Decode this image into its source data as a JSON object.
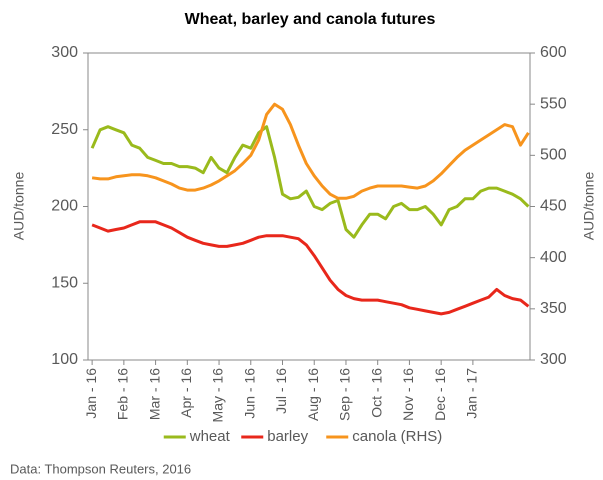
{
  "chart_data": {
    "type": "line",
    "title": "Wheat, barley and canola futures",
    "y_label": "AUD/tonne",
    "y2_label": "AUD/tonne",
    "source": "Data: Thompson Reuters, 2016",
    "x": [
      0,
      0.25,
      0.5,
      0.75,
      1,
      1.25,
      1.5,
      1.75,
      2,
      2.25,
      2.5,
      2.75,
      3,
      3.25,
      3.5,
      3.75,
      4,
      4.25,
      4.5,
      4.75,
      5,
      5.25,
      5.5,
      5.75,
      6,
      6.25,
      6.5,
      6.75,
      7,
      7.25,
      7.5,
      7.75,
      8,
      8.25,
      8.5,
      8.75,
      9,
      9.25,
      9.5,
      9.75,
      10,
      10.25,
      10.5,
      10.75,
      11,
      11.25,
      11.5,
      11.75,
      12,
      12.25,
      12.5,
      12.75,
      13,
      13.25,
      13.5,
      13.75
    ],
    "series": [
      {
        "name": "wheat",
        "color": "#9aba1c",
        "values": [
          238,
          250,
          252,
          250,
          248,
          240,
          238,
          232,
          230,
          228,
          228,
          226,
          226,
          225,
          222,
          232,
          225,
          222,
          232,
          240,
          238,
          248,
          252,
          232,
          208,
          205,
          206,
          210,
          200,
          198,
          202,
          204,
          185,
          180,
          188,
          195,
          195,
          192,
          200,
          202,
          198,
          198,
          200,
          195,
          188,
          198,
          200,
          205,
          205,
          210,
          212,
          212,
          210,
          208,
          205,
          200
        ]
      },
      {
        "name": "barley",
        "color": "#e8271b",
        "values": [
          188,
          186,
          184,
          185,
          186,
          188,
          190,
          190,
          190,
          188,
          186,
          183,
          180,
          178,
          176,
          175,
          174,
          174,
          175,
          176,
          178,
          180,
          181,
          181,
          181,
          180,
          179,
          175,
          168,
          160,
          152,
          146,
          142,
          140,
          139,
          139,
          139,
          138,
          137,
          136,
          134,
          133,
          132,
          131,
          130,
          131,
          133,
          135,
          137,
          139,
          141,
          146,
          142,
          140,
          139,
          135
        ]
      },
      {
        "name": "canola (RHS)",
        "color": "#f7941d",
        "axis": "y2",
        "values": [
          478,
          477,
          477,
          479,
          480,
          481,
          481,
          480,
          478,
          475,
          472,
          468,
          466,
          466,
          468,
          471,
          475,
          480,
          485,
          492,
          500,
          515,
          540,
          550,
          545,
          530,
          510,
          492,
          480,
          470,
          462,
          458,
          458,
          460,
          465,
          468,
          470,
          470,
          470,
          470,
          469,
          468,
          470,
          475,
          482,
          490,
          498,
          505,
          510,
          515,
          520,
          525,
          530,
          528,
          510,
          522
        ]
      }
    ],
    "xlim": [
      -0.13,
      13.8
    ],
    "xticks": [
      {
        "value": 0,
        "label": "Jan - 16"
      },
      {
        "value": 1,
        "label": "Feb - 16"
      },
      {
        "value": 2,
        "label": "Mar - 16"
      },
      {
        "value": 3,
        "label": "Apr - 16"
      },
      {
        "value": 4,
        "label": "May - 16"
      },
      {
        "value": 5,
        "label": "Jun - 16"
      },
      {
        "value": 6,
        "label": "Jul - 16"
      },
      {
        "value": 7,
        "label": "Aug - 16"
      },
      {
        "value": 8,
        "label": "Sep - 16"
      },
      {
        "value": 9,
        "label": "Oct - 16"
      },
      {
        "value": 10,
        "label": "Nov - 16"
      },
      {
        "value": 11,
        "label": "Dec - 16"
      },
      {
        "value": 12,
        "label": "Jan - 17"
      }
    ],
    "ylim": [
      100,
      300
    ],
    "yticks": [
      100,
      150,
      200,
      250,
      300
    ],
    "y2lim": [
      300,
      600
    ],
    "y2ticks": [
      300,
      350,
      400,
      450,
      500,
      550,
      600
    ],
    "legend": "bottom"
  }
}
